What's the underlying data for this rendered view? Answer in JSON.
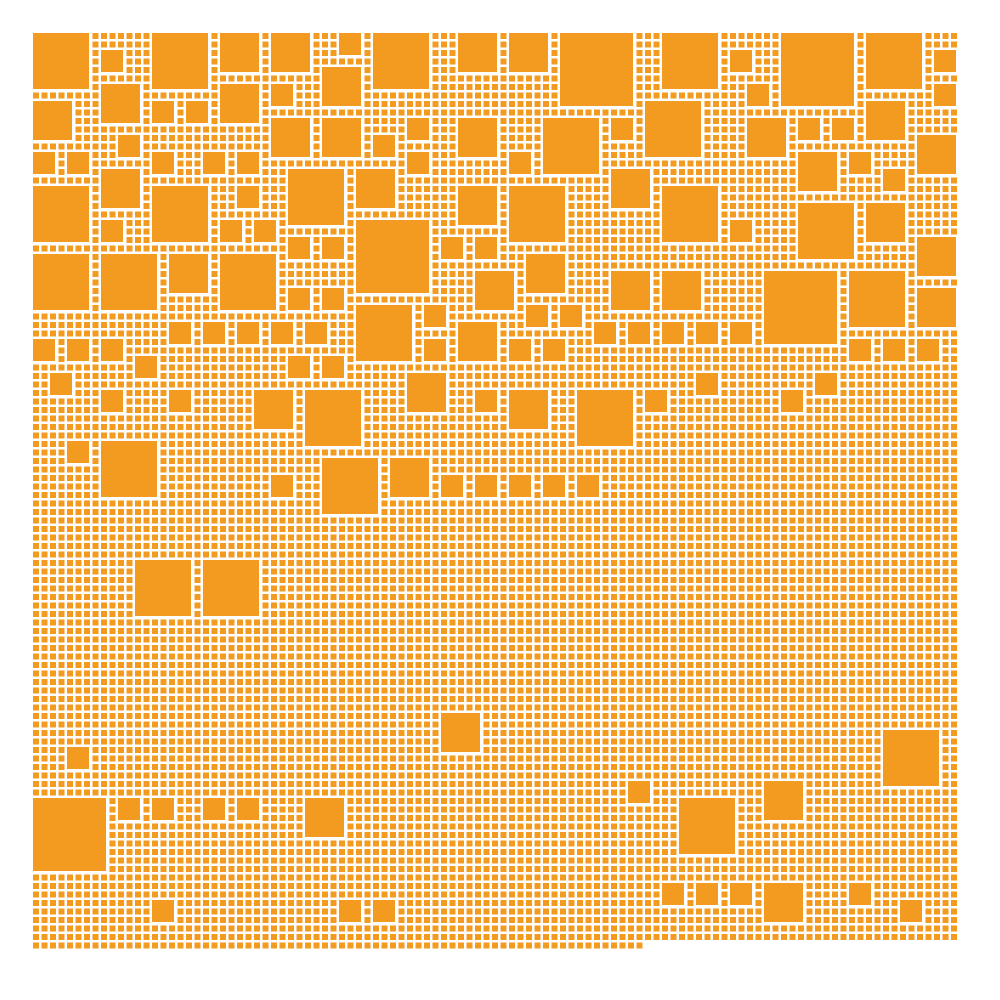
{
  "artwork": {
    "kind": "square mosaic",
    "tile_color": "#F39A21",
    "background_color": "#FFFFFF",
    "tile_shape": "square"
  }
}
